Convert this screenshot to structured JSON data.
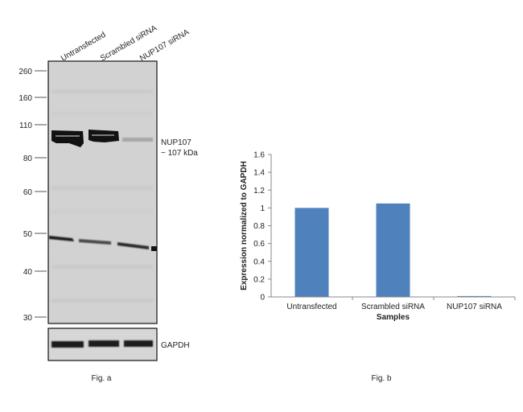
{
  "blot": {
    "lanes": [
      "Untransfected",
      "Scrambled siRNA",
      "NUP107 siRNA"
    ],
    "markers": [
      "260",
      "160",
      "110",
      "80",
      "60",
      "50",
      "40",
      "30"
    ],
    "target_label": [
      "NUP107",
      "~ 107 kDa"
    ],
    "loading_label": "GAPDH",
    "caption": "Fig. a"
  },
  "chart_data": {
    "type": "bar",
    "categories": [
      "Untransfected",
      "Scrambled siRNA",
      "NUP107 siRNA"
    ],
    "values": [
      1.0,
      1.05,
      0.01
    ],
    "xlabel": "Samples",
    "ylabel": "Expression normalized to GAPDH",
    "ylim": [
      0,
      1.6
    ],
    "yticks": [
      "0",
      "0.2",
      "0.4",
      "0.6",
      "0.8",
      "1",
      "1.2",
      "1.4",
      "1.6"
    ],
    "grid": false,
    "bar_color": "#4f81bd",
    "caption": "Fig. b"
  }
}
